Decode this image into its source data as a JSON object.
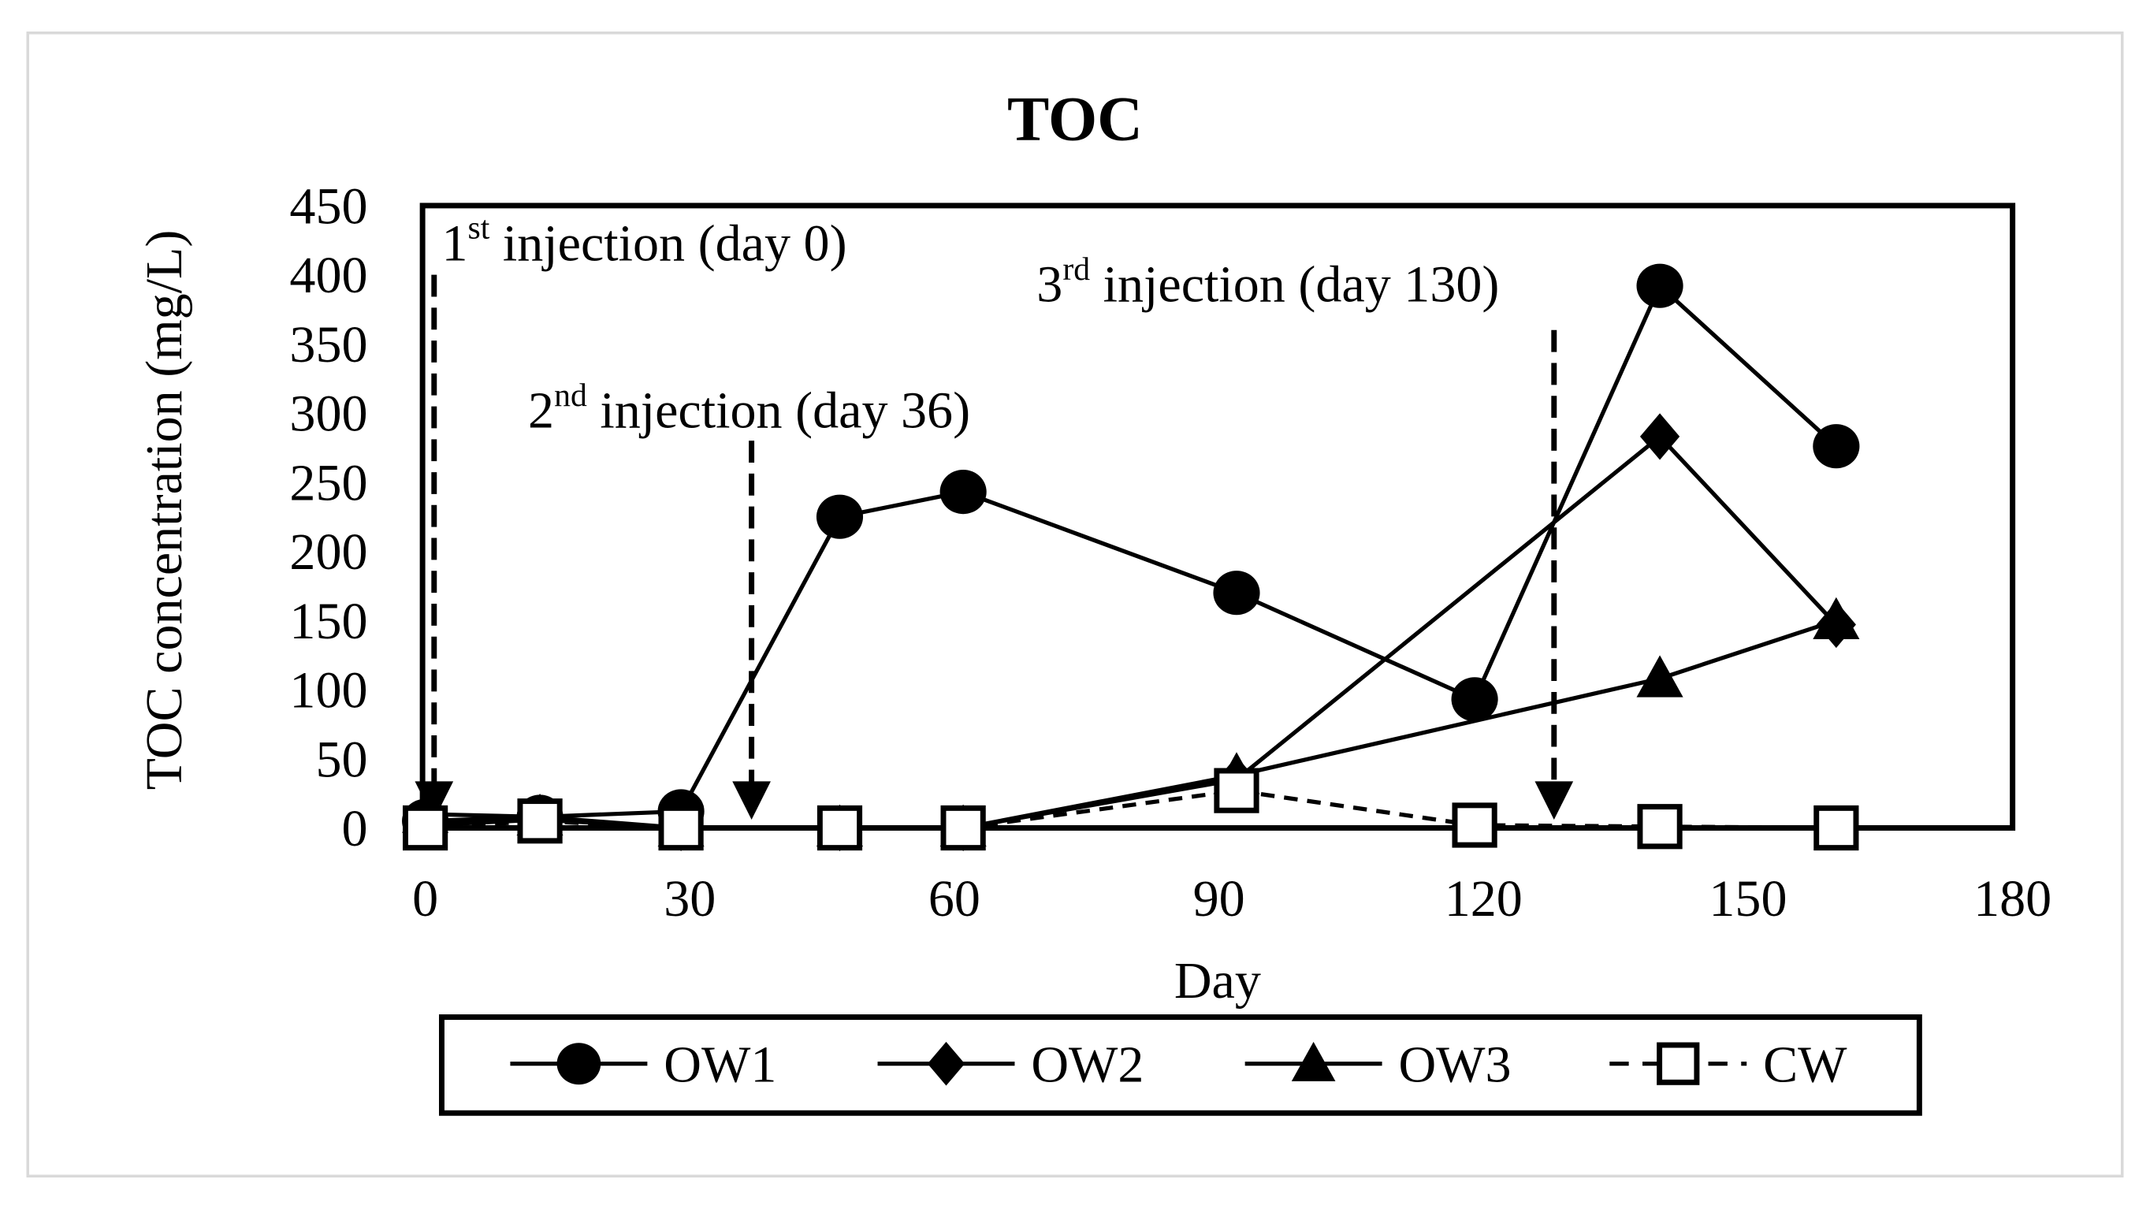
{
  "chart_data": {
    "type": "line",
    "title": "TOC",
    "xlabel": "Day",
    "ylabel": "TOC concentration (mg/L)",
    "xlim": [
      0,
      180
    ],
    "ylim": [
      0,
      450
    ],
    "xticks": [
      0,
      30,
      60,
      90,
      120,
      150,
      180
    ],
    "yticks": [
      0,
      50,
      100,
      150,
      200,
      250,
      300,
      350,
      400,
      450
    ],
    "grid": false,
    "legend_position": "bottom",
    "series": [
      {
        "name": "OW1",
        "marker": "circle",
        "dash": false,
        "x": [
          0,
          13,
          29,
          47,
          61,
          92,
          119,
          140,
          160
        ],
        "values": [
          5,
          8,
          12,
          225,
          243,
          170,
          93,
          392,
          276
        ]
      },
      {
        "name": "OW2",
        "marker": "diamond",
        "dash": false,
        "x": [
          0,
          13,
          29,
          47,
          61,
          92,
          140,
          160
        ],
        "values": [
          2,
          6,
          0,
          0,
          0,
          35,
          283,
          147
        ]
      },
      {
        "name": "OW3",
        "marker": "triangle",
        "dash": false,
        "x": [
          0,
          13,
          29,
          47,
          61,
          92,
          140,
          160
        ],
        "values": [
          10,
          8,
          0,
          0,
          0,
          38,
          108,
          150
        ]
      },
      {
        "name": "CW",
        "marker": "open-square",
        "dash": true,
        "x": [
          0,
          13,
          29,
          47,
          61,
          92,
          119,
          140,
          160
        ],
        "values": [
          0,
          5,
          0,
          0,
          0,
          27,
          2,
          1,
          0
        ]
      }
    ],
    "annotations": [
      {
        "num": "1",
        "sup": "st",
        "text": " injection (day 0)",
        "day": 1,
        "from": 400
      },
      {
        "num": "2",
        "sup": "nd",
        "text": " injection (day 36)",
        "day": 37,
        "from": 280
      },
      {
        "num": "3",
        "sup": "rd",
        "text": " injection (day 130)",
        "day": 128,
        "from": 360
      }
    ]
  }
}
